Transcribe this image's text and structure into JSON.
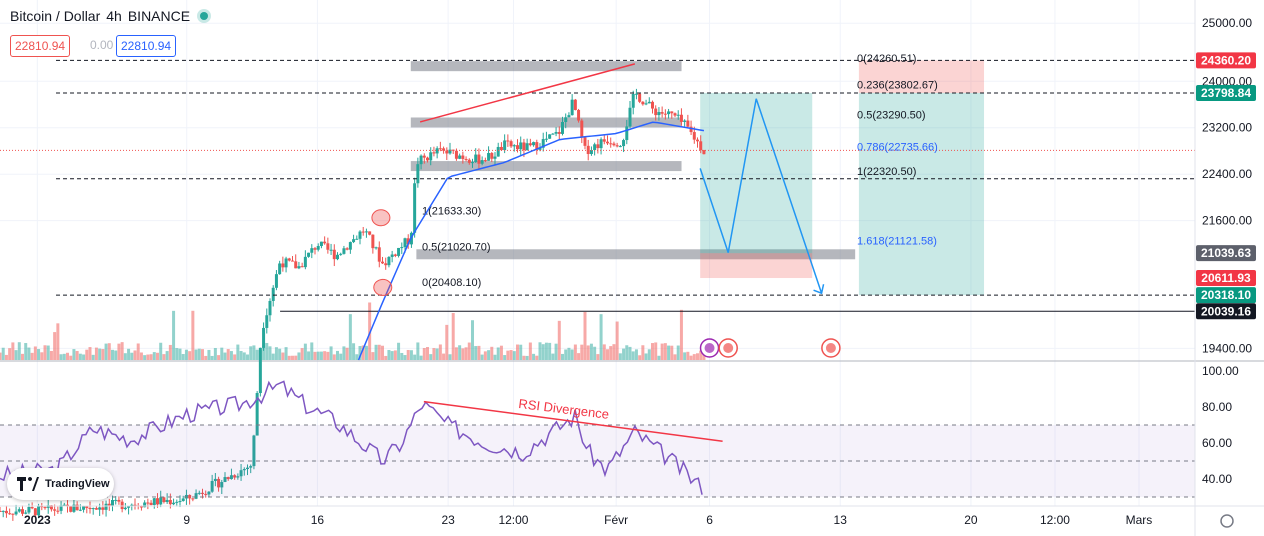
{
  "header": {
    "symbol": "Bitcoin / Dollar",
    "interval": "4h",
    "exchange": "BINANCE",
    "bid": "22810.94",
    "spread": "0.00",
    "ask": "22810.94"
  },
  "watermark": {
    "brand": "TradingView"
  },
  "colors": {
    "up": "#26a69a",
    "down": "#ef5350",
    "ema": "#2962ff",
    "rsi": "#7e57c2",
    "pattern": "#2196f3",
    "resistance_line": "#f23645"
  },
  "chart_data": [
    {
      "type": "candlestick",
      "title": "Bitcoin / Dollar · 4h · BINANCE",
      "ylim": [
        19200,
        25400
      ],
      "y_ticks": [
        "25000.00",
        "24000.00",
        "23200.00",
        "22400.00",
        "21600.00",
        "19400.00"
      ],
      "x_ticks": [
        "2023",
        "9",
        "16",
        "23",
        "12:00",
        "Févr",
        "6",
        "13",
        "20",
        "12:00",
        "Mars"
      ],
      "x_tick_days": [
        1,
        9,
        16,
        23,
        26.5,
        32,
        37,
        44,
        51,
        55.5,
        60
      ],
      "xlim_days": [
        -1,
        63
      ],
      "last_price": 22810.94,
      "price_labels": [
        {
          "text": "24360.20",
          "value": 24360.2,
          "kind": "red"
        },
        {
          "text": "23798.84",
          "value": 23798.84,
          "kind": "teal"
        },
        {
          "text": "21039.63",
          "value": 21039.63,
          "kind": "gray"
        },
        {
          "text": "20611.93",
          "value": 20611.93,
          "kind": "red"
        },
        {
          "text": "20318.10",
          "value": 20318.1,
          "kind": "teal"
        },
        {
          "text": "20039.16",
          "value": 20039.16,
          "kind": "black"
        }
      ],
      "key_prices": [
        {
          "day": 1,
          "price": 16600
        },
        {
          "day": 9,
          "price": 16800
        },
        {
          "day": 12.5,
          "price": 17400
        },
        {
          "day": 13,
          "price": 19700
        },
        {
          "day": 14,
          "price": 20900
        },
        {
          "day": 15,
          "price": 20800
        },
        {
          "day": 16,
          "price": 21200
        },
        {
          "day": 17,
          "price": 21000
        },
        {
          "day": 18.5,
          "price": 21450
        },
        {
          "day": 19.5,
          "price": 20850
        },
        {
          "day": 20.3,
          "price": 21100
        },
        {
          "day": 21,
          "price": 21300
        },
        {
          "day": 21.3,
          "price": 22600
        },
        {
          "day": 22.5,
          "price": 22800
        },
        {
          "day": 23.3,
          "price": 22750
        },
        {
          "day": 24.5,
          "price": 22650
        },
        {
          "day": 25.3,
          "price": 22700
        },
        {
          "day": 26,
          "price": 22900
        },
        {
          "day": 27.4,
          "price": 22850
        },
        {
          "day": 28.9,
          "price": 23100
        },
        {
          "day": 29.7,
          "price": 23650
        },
        {
          "day": 30.3,
          "price": 22800
        },
        {
          "day": 31.5,
          "price": 23000
        },
        {
          "day": 32.3,
          "price": 22950
        },
        {
          "day": 33,
          "price": 23800
        },
        {
          "day": 34,
          "price": 23500
        },
        {
          "day": 35.1,
          "price": 23400
        },
        {
          "day": 35.8,
          "price": 23200
        },
        {
          "day": 36.7,
          "price": 22800
        }
      ],
      "ema_points": [
        {
          "day": 18.2,
          "price": 19200
        },
        {
          "day": 19.5,
          "price": 20200
        },
        {
          "day": 21,
          "price": 21300
        },
        {
          "day": 23,
          "price": 22350
        },
        {
          "day": 26,
          "price": 22600
        },
        {
          "day": 29,
          "price": 23000
        },
        {
          "day": 32,
          "price": 23100
        },
        {
          "day": 34,
          "price": 23300
        },
        {
          "day": 36.7,
          "price": 23150
        }
      ],
      "fib_levels": [
        {
          "label": "0(24260.51)",
          "price": 24260.51
        },
        {
          "label": "0.236(23802.67)",
          "price": 23802.67
        },
        {
          "label": "0.5(23290.50)",
          "price": 23290.5
        },
        {
          "label": "0.786(22735.66)",
          "price": 22735.66
        },
        {
          "label": "1(22320.50)",
          "price": 22320.5
        },
        {
          "label": "1.618(21121.58)",
          "price": 21121.58
        }
      ],
      "fib_levels_left": [
        {
          "label": "1(21633.30)",
          "price": 21633.3
        },
        {
          "label": "0.5(21020.70)",
          "price": 21020.7
        },
        {
          "label": "0(20408.10)",
          "price": 20408.1
        }
      ],
      "dashed_levels": [
        24360.2,
        23798.84,
        22320.5,
        20318.1
      ],
      "horizontal_levels": [
        20039.16
      ],
      "zones": [
        24260.51,
        23290.5,
        22540,
        21020.7
      ],
      "projection_path": [
        {
          "day": 36.5,
          "price": 22500
        },
        {
          "day": 38,
          "price": 21050
        },
        {
          "day": 39.5,
          "price": 23700
        },
        {
          "day": 43,
          "price": 20350
        }
      ],
      "position_box": {
        "day_from": 36.5,
        "day_to": 42.5,
        "target": 23798.84,
        "entry": 21039.63,
        "stop": 20611.93
      },
      "position_box_2": {
        "day_from": 45,
        "day_to": 51.7,
        "top": 24360.2,
        "mid": 23798.84,
        "bottom": 20318.1
      },
      "resistance_line": [
        {
          "day": 21.5,
          "price": 23300
        },
        {
          "day": 33,
          "price": 24300
        }
      ],
      "circles": [
        {
          "day": 19.4,
          "price": 21650
        },
        {
          "day": 19.5,
          "price": 20450
        }
      ]
    },
    {
      "type": "line",
      "title": "RSI",
      "ylim": [
        25,
        105
      ],
      "y_ticks": [
        "100.00",
        "80.00",
        "60.00",
        "40.00"
      ],
      "bands": [
        70,
        50,
        30
      ],
      "points": [
        {
          "day": -1,
          "value": 42
        },
        {
          "day": 2,
          "value": 45
        },
        {
          "day": 4,
          "value": 68
        },
        {
          "day": 6,
          "value": 62
        },
        {
          "day": 9,
          "value": 76
        },
        {
          "day": 12,
          "value": 82
        },
        {
          "day": 14,
          "value": 92
        },
        {
          "day": 15.5,
          "value": 80
        },
        {
          "day": 17,
          "value": 72
        },
        {
          "day": 19.5,
          "value": 50
        },
        {
          "day": 20.5,
          "value": 60
        },
        {
          "day": 21.6,
          "value": 82
        },
        {
          "day": 23,
          "value": 70
        },
        {
          "day": 25,
          "value": 60
        },
        {
          "day": 27,
          "value": 55
        },
        {
          "day": 29.8,
          "value": 75
        },
        {
          "day": 30.5,
          "value": 55
        },
        {
          "day": 31.5,
          "value": 45
        },
        {
          "day": 33,
          "value": 66
        },
        {
          "day": 35,
          "value": 50
        },
        {
          "day": 36.5,
          "value": 36
        }
      ],
      "divergence_label": "RSI Divergence",
      "divergence_line": [
        {
          "day": 21.7,
          "value": 83
        },
        {
          "day": 37.7,
          "value": 61
        }
      ]
    }
  ]
}
